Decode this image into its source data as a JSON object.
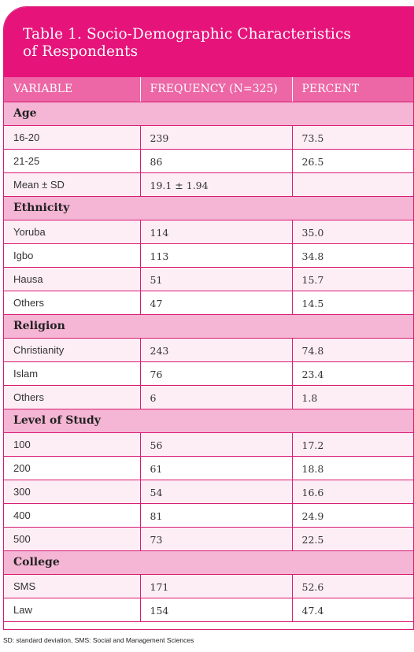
{
  "title": {
    "line1": "Table 1. Socio-Demographic Characteristics",
    "line2": "of Respondents"
  },
  "header": {
    "col1": "VARIABLE",
    "col2": "FREQUENCY (N=325)",
    "col3": "PERCENT"
  },
  "groups": [
    {
      "name": "Age",
      "rows": [
        {
          "label": "16-20",
          "frequency": "239",
          "percent": "73.5"
        },
        {
          "label": "21-25",
          "frequency": "86",
          "percent": "26.5"
        },
        {
          "label": "Mean ± SD",
          "frequency": "19.1 ± 1.94",
          "percent": ""
        }
      ]
    },
    {
      "name": "Ethnicity",
      "rows": [
        {
          "label": "Yoruba",
          "frequency": "114",
          "percent": "35.0"
        },
        {
          "label": "Igbo",
          "frequency": "113",
          "percent": "34.8"
        },
        {
          "label": "Hausa",
          "frequency": "51",
          "percent": "15.7"
        },
        {
          "label": "Others",
          "frequency": "47",
          "percent": "14.5"
        }
      ]
    },
    {
      "name": "Religion",
      "rows": [
        {
          "label": "Christianity",
          "frequency": "243",
          "percent": "74.8"
        },
        {
          "label": "Islam",
          "frequency": "76",
          "percent": "23.4"
        },
        {
          "label": "Others",
          "frequency": "6",
          "percent": "1.8"
        }
      ]
    },
    {
      "name": "Level of Study",
      "rows": [
        {
          "label": "100",
          "frequency": "56",
          "percent": "17.2"
        },
        {
          "label": "200",
          "frequency": "61",
          "percent": "18.8"
        },
        {
          "label": "300",
          "frequency": "54",
          "percent": "16.6"
        },
        {
          "label": "400",
          "frequency": "81",
          "percent": "24.9"
        },
        {
          "label": "500",
          "frequency": "73",
          "percent": "22.5"
        }
      ]
    },
    {
      "name": "College",
      "rows": [
        {
          "label": "SMS",
          "frequency": "171",
          "percent": "52.6"
        },
        {
          "label": "Law",
          "frequency": "154",
          "percent": "47.4"
        }
      ]
    }
  ],
  "footnote": "SD: standard deviation, SMS: Social and Management Sciences",
  "colors": {
    "title_bg": "#e6137b",
    "header_bg": "#ed66a6",
    "group_bg": "#f5b5d4",
    "stripe_bg": "#fdeef5",
    "border": "#d81b74"
  }
}
